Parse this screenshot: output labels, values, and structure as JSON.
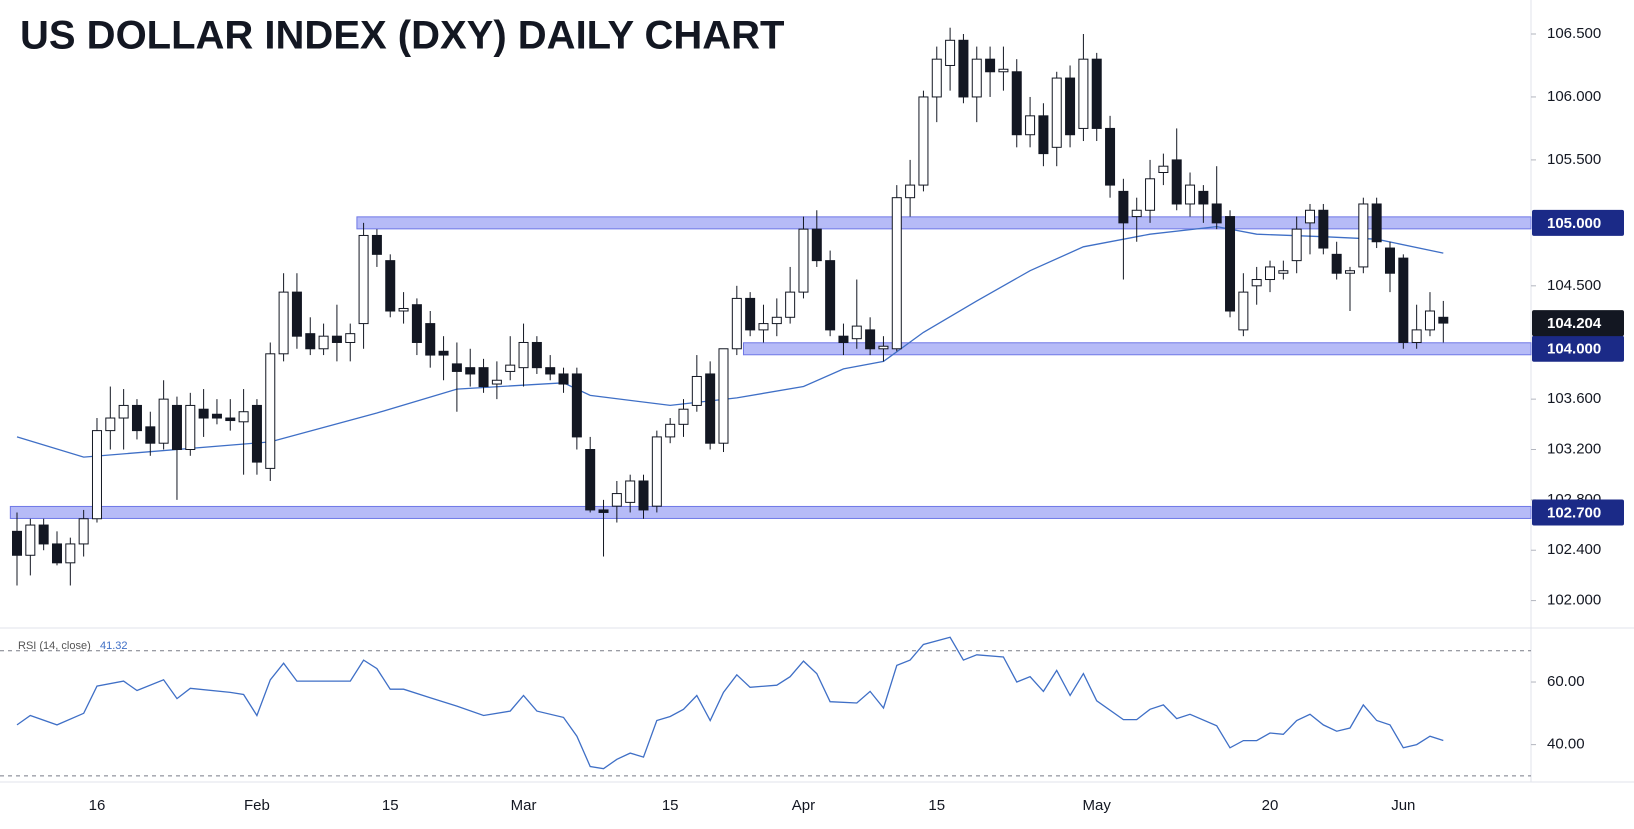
{
  "chart_data": [
    {
      "type": "candlestick",
      "title": "US DOLLAR INDEX (DXY) DAILY CHART",
      "categories": [
        null,
        null,
        null,
        null,
        null,
        null,
        "16",
        null,
        null,
        null,
        null,
        null,
        null,
        null,
        null,
        null,
        null,
        null,
        "Feb",
        null,
        null,
        null,
        null,
        null,
        null,
        null,
        null,
        null,
        "15",
        null,
        null,
        null,
        null,
        null,
        null,
        null,
        null,
        null,
        "Mar",
        null,
        null,
        null,
        null,
        null,
        null,
        null,
        null,
        null,
        null,
        "15",
        null,
        null,
        null,
        null,
        null,
        null,
        null,
        null,
        null,
        "Apr",
        null,
        null,
        null,
        null,
        null,
        null,
        null,
        null,
        null,
        "15",
        null,
        null,
        null,
        null,
        null,
        null,
        null,
        null,
        null,
        null,
        null,
        "May",
        null,
        null,
        null,
        null,
        null,
        null,
        null,
        null,
        null,
        null,
        null,
        null,
        "20",
        null,
        null,
        null,
        null,
        null,
        null,
        null,
        null,
        null,
        "Jun",
        null,
        null,
        null
      ],
      "open": [
        102.55,
        102.36,
        102.6,
        102.45,
        102.3,
        102.45,
        102.65,
        103.35,
        103.45,
        103.55,
        103.38,
        103.25,
        103.55,
        103.2,
        103.52,
        103.48,
        103.45,
        103.42,
        103.55,
        103.05,
        103.96,
        104.45,
        104.12,
        104.0,
        104.1,
        104.05,
        104.2,
        104.9,
        104.7,
        104.3,
        104.35,
        104.2,
        103.98,
        103.88,
        103.85,
        103.85,
        103.72,
        103.82,
        103.85,
        104.05,
        103.85,
        103.8,
        103.8,
        103.2,
        102.72,
        102.75,
        102.78,
        102.95,
        102.75,
        103.3,
        103.4,
        103.55,
        103.8,
        103.25,
        104.0,
        104.4,
        104.15,
        104.2,
        104.25,
        104.45,
        104.95,
        104.7,
        104.1,
        104.08,
        104.15,
        104.0,
        104.0,
        105.2,
        105.3,
        106.0,
        106.25,
        106.45,
        106.0,
        106.3,
        106.2,
        106.2,
        105.7,
        105.85,
        105.6,
        106.15,
        105.75,
        106.3,
        105.75,
        105.25,
        105.05,
        105.1,
        105.4,
        105.5,
        105.15,
        105.25,
        105.15,
        105.05,
        104.15,
        104.5,
        104.55,
        104.6,
        104.7,
        105.0,
        105.1,
        104.75,
        104.6,
        104.65,
        105.15,
        104.8,
        104.72,
        104.05,
        104.15,
        104.25
      ],
      "high": [
        102.7,
        102.65,
        102.65,
        102.55,
        102.5,
        102.72,
        103.45,
        103.7,
        103.68,
        103.6,
        103.5,
        103.75,
        103.62,
        103.65,
        103.68,
        103.6,
        103.6,
        103.68,
        103.6,
        104.05,
        104.6,
        104.6,
        104.25,
        104.2,
        104.35,
        104.2,
        105.0,
        104.95,
        104.75,
        104.45,
        104.4,
        104.3,
        104.1,
        104.05,
        104.0,
        103.92,
        103.9,
        104.1,
        104.2,
        104.1,
        103.95,
        103.85,
        103.85,
        103.3,
        102.8,
        102.95,
        103.0,
        103.0,
        103.35,
        103.45,
        103.6,
        103.95,
        103.9,
        104.0,
        104.5,
        104.45,
        104.35,
        104.4,
        104.65,
        105.05,
        105.1,
        104.78,
        104.2,
        104.55,
        104.25,
        104.1,
        105.3,
        105.5,
        106.05,
        106.4,
        106.55,
        106.5,
        106.4,
        106.4,
        106.4,
        106.3,
        106.0,
        105.95,
        106.2,
        106.25,
        106.5,
        106.35,
        105.85,
        105.35,
        105.2,
        105.5,
        105.55,
        105.75,
        105.4,
        105.3,
        105.45,
        105.1,
        104.6,
        104.65,
        104.7,
        104.7,
        105.05,
        105.15,
        105.15,
        104.85,
        104.65,
        105.2,
        105.2,
        104.85,
        104.75,
        104.35,
        104.45,
        104.38
      ],
      "low": [
        102.12,
        102.2,
        102.4,
        102.28,
        102.12,
        102.35,
        102.62,
        103.2,
        103.2,
        103.28,
        103.15,
        103.2,
        102.8,
        103.15,
        103.3,
        103.4,
        103.35,
        103.0,
        103.0,
        102.95,
        103.9,
        104.0,
        103.95,
        103.95,
        103.9,
        103.9,
        104.0,
        104.65,
        104.25,
        104.2,
        103.95,
        103.85,
        103.75,
        103.5,
        103.7,
        103.65,
        103.6,
        103.75,
        103.7,
        103.8,
        103.75,
        103.65,
        103.2,
        102.7,
        102.35,
        102.62,
        102.7,
        102.65,
        102.7,
        103.25,
        103.3,
        103.5,
        103.2,
        103.18,
        103.95,
        104.1,
        104.05,
        104.1,
        104.2,
        104.4,
        104.65,
        104.1,
        103.95,
        104.0,
        103.95,
        103.9,
        103.98,
        105.05,
        105.25,
        105.8,
        106.05,
        105.95,
        105.8,
        106.0,
        106.05,
        105.6,
        105.6,
        105.45,
        105.45,
        105.6,
        105.65,
        105.65,
        105.2,
        104.55,
        104.85,
        105.0,
        105.3,
        105.1,
        105.05,
        105.0,
        104.95,
        104.25,
        104.1,
        104.35,
        104.45,
        104.55,
        104.6,
        104.75,
        104.75,
        104.55,
        104.3,
        104.6,
        104.8,
        104.45,
        104.0,
        104.0,
        104.1,
        104.05
      ],
      "close": [
        102.36,
        102.6,
        102.45,
        102.3,
        102.45,
        102.65,
        103.35,
        103.45,
        103.55,
        103.35,
        103.25,
        103.6,
        103.2,
        103.55,
        103.45,
        103.45,
        103.43,
        103.5,
        103.1,
        103.96,
        104.45,
        104.1,
        104.0,
        104.1,
        104.05,
        104.12,
        104.9,
        104.75,
        104.3,
        104.32,
        104.05,
        103.95,
        103.95,
        103.82,
        103.8,
        103.7,
        103.75,
        103.87,
        104.05,
        103.85,
        103.8,
        103.72,
        103.3,
        102.72,
        102.7,
        102.85,
        102.95,
        102.72,
        103.3,
        103.4,
        103.52,
        103.78,
        103.25,
        104.0,
        104.4,
        104.15,
        104.2,
        104.25,
        104.45,
        104.95,
        104.7,
        104.15,
        104.05,
        104.18,
        104.0,
        104.02,
        105.2,
        105.3,
        106.0,
        106.3,
        106.45,
        106.0,
        106.3,
        106.2,
        106.22,
        105.7,
        105.85,
        105.55,
        106.15,
        105.7,
        106.3,
        105.75,
        105.3,
        105.0,
        105.1,
        105.35,
        105.45,
        105.15,
        105.3,
        105.15,
        105.0,
        104.3,
        104.45,
        104.55,
        104.65,
        104.62,
        104.95,
        105.1,
        104.8,
        104.6,
        104.62,
        105.15,
        104.85,
        104.6,
        104.05,
        104.15,
        104.3,
        104.204
      ],
      "up_color": "#ffffff",
      "down_color": "#131722",
      "ma": {
        "color": "#3f6fc6",
        "x": [
          0,
          5,
          19,
          27,
          33,
          41,
          43,
          49,
          54,
          59,
          62,
          65,
          68,
          72,
          76,
          80,
          85,
          90,
          93,
          98,
          102,
          107
        ],
        "values": [
          103.3,
          103.14,
          103.26,
          103.49,
          103.68,
          103.73,
          103.63,
          103.55,
          103.61,
          103.7,
          103.84,
          103.9,
          104.13,
          104.38,
          104.62,
          104.81,
          104.91,
          104.97,
          104.91,
          104.89,
          104.87,
          104.76
        ]
      },
      "levels": [
        {
          "value": 105,
          "label": "105.000",
          "start": 26
        },
        {
          "value": 104,
          "label": "104.000",
          "start": 55
        },
        {
          "value": 102.7,
          "label": "102.700",
          "start": 0
        }
      ],
      "level_color": "#1b2a87",
      "ylim": [
        101.83,
        106.77
      ],
      "yticks": [
        {
          "value": 102,
          "label": "102.000"
        },
        {
          "value": 102.4,
          "label": "102.400"
        },
        {
          "value": 102.8,
          "label": "102.800"
        },
        {
          "value": 103.2,
          "label": "103.200"
        },
        {
          "value": 103.6,
          "label": "103.600"
        },
        {
          "value": 104.5,
          "label": "104.500"
        },
        {
          "value": 105.5,
          "label": "105.500"
        },
        {
          "value": 106,
          "label": "106.000"
        },
        {
          "value": 106.5,
          "label": "106.500"
        }
      ]
    },
    {
      "type": "line",
      "label": "RSI (14, close)",
      "color": "#3f6fc6",
      "x": [
        0,
        1,
        3,
        5,
        6,
        8,
        9,
        11,
        12,
        13,
        16,
        17,
        18,
        19,
        20,
        21,
        23,
        25,
        26,
        27,
        28,
        29,
        31,
        33,
        35,
        37,
        38,
        39,
        41,
        42,
        43,
        44,
        45,
        46,
        47,
        48,
        49,
        50,
        51,
        52,
        53,
        54,
        55,
        57,
        58,
        59,
        60,
        61,
        63,
        64,
        65,
        66,
        67,
        68,
        70,
        71,
        72,
        74,
        75,
        76,
        77,
        78,
        79,
        80,
        81,
        83,
        84,
        85,
        86,
        87,
        88,
        90,
        91,
        92,
        93,
        94,
        95,
        96,
        97,
        98,
        99,
        100,
        101,
        102,
        103,
        104,
        105,
        106,
        107
      ],
      "values": [
        46.3,
        49.3,
        46.3,
        50,
        58.7,
        60.3,
        57.3,
        60.7,
        54.7,
        58,
        56.7,
        56,
        49.3,
        60.7,
        66,
        60.3,
        60.3,
        60.3,
        67,
        64.3,
        57.7,
        57.7,
        55,
        52.3,
        49.3,
        50.7,
        55.7,
        50.7,
        48.7,
        42.7,
        33,
        32.3,
        35.3,
        37.3,
        36,
        47.7,
        49,
        51.3,
        55.7,
        47.7,
        56.7,
        62.3,
        58.3,
        59,
        61.7,
        66.7,
        62.7,
        53.7,
        53.3,
        57,
        51.7,
        65.3,
        67,
        72,
        74.3,
        67,
        68.7,
        68,
        60,
        61.7,
        57,
        63.7,
        55.7,
        62.7,
        54,
        48,
        48,
        51.3,
        52.7,
        48.3,
        49.7,
        46,
        39,
        41.3,
        41.3,
        43.7,
        43.3,
        47.7,
        49.7,
        46.3,
        44.3,
        45.3,
        52.7,
        47.7,
        46.3,
        39,
        40,
        42.7,
        41.32
      ],
      "ylim": [
        28.7,
        76.3
      ],
      "yticks": [
        {
          "value": 40,
          "label": "40.00"
        },
        {
          "value": 60,
          "label": "60.00"
        }
      ],
      "bands": [
        70,
        30
      ]
    }
  ]
}
